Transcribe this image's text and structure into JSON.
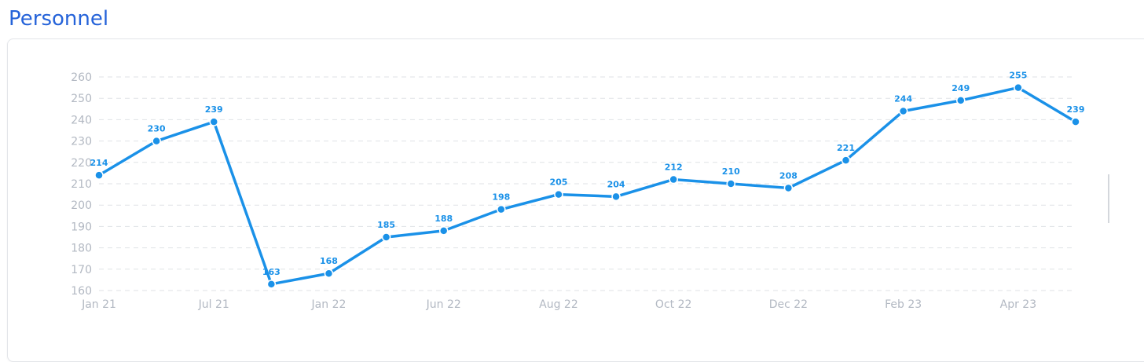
{
  "header": {
    "title": "Personnel"
  },
  "colors": {
    "title": "#2563d9",
    "series": "#1a91e8",
    "grid": "#dfe2e6",
    "tick_text": "#b2b8c2"
  },
  "chart_data": {
    "type": "line",
    "title": "",
    "xlabel": "",
    "ylabel": "",
    "ylim": [
      160,
      260
    ],
    "yticks": [
      160,
      170,
      180,
      190,
      200,
      210,
      220,
      230,
      240,
      250,
      260
    ],
    "grid": "horizontal dashed",
    "x_tick_labels": [
      "Jan 21",
      "Jul 21",
      "Jan 22",
      "Jun 22",
      "Aug 22",
      "Oct 22",
      "Dec 22",
      "Feb 23",
      "Apr 23"
    ],
    "x_tick_positions": [
      0,
      2,
      4,
      6,
      8,
      10,
      12,
      14,
      16
    ],
    "series": [
      {
        "values": [
          214,
          230,
          239,
          163,
          168,
          185,
          188,
          198,
          205,
          204,
          212,
          210,
          208,
          221,
          244,
          249,
          255,
          239
        ],
        "data_labels": [
          "214",
          "230",
          "239",
          "163",
          "168",
          "185",
          "188",
          "198",
          "205",
          "204",
          "212",
          "210",
          "208",
          "221",
          "244",
          "249",
          "255",
          "239"
        ]
      }
    ]
  }
}
